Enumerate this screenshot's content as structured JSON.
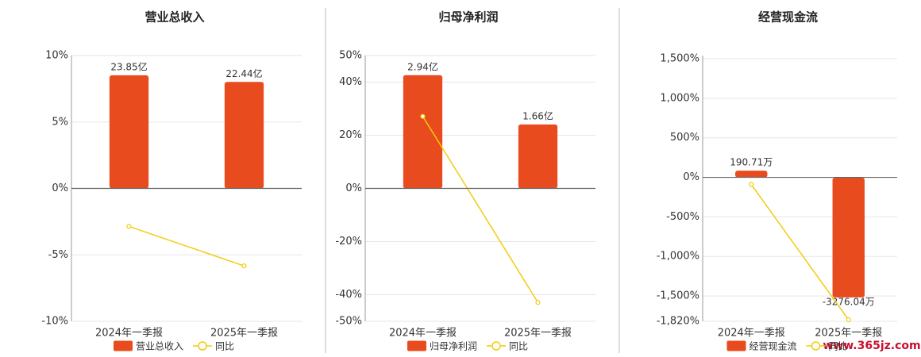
{
  "chart_data": [
    {
      "type": "bar",
      "title": "营业总收入",
      "categories": [
        "2024年一季报",
        "2025年一季报"
      ],
      "series": [
        {
          "name": "营业总收入",
          "type": "bar",
          "axis": "y2",
          "color": "#e84c1e",
          "values": [
            23.85,
            22.44
          ],
          "value_labels": [
            "23.85亿",
            "22.44亿"
          ]
        },
        {
          "name": "同比",
          "type": "line",
          "color": "#f2cc0c",
          "values": [
            -2.86,
            -5.83
          ]
        }
      ],
      "ylim": [
        -10,
        10
      ],
      "yticks": [
        {
          "value": 10,
          "label": "10%"
        },
        {
          "value": 5,
          "label": "5%"
        },
        {
          "value": 0,
          "label": "0%"
        },
        {
          "value": -5,
          "label": "-5%"
        },
        {
          "value": -10,
          "label": "-10%"
        }
      ],
      "y2lim": [
        -28,
        28
      ],
      "grid": true
    },
    {
      "type": "bar",
      "title": "归母净利润",
      "categories": [
        "2024年一季报",
        "2025年一季报"
      ],
      "series": [
        {
          "name": "归母净利润",
          "type": "bar",
          "axis": "y2",
          "color": "#e84c1e",
          "values": [
            2.94,
            1.66
          ],
          "value_labels": [
            "2.94亿",
            "1.66亿"
          ]
        },
        {
          "name": "同比",
          "type": "line",
          "color": "#f2cc0c",
          "values": [
            27.1,
            -42.9
          ]
        }
      ],
      "ylim": [
        -50,
        50
      ],
      "yticks": [
        {
          "value": 50,
          "label": "50%"
        },
        {
          "value": 40,
          "label": "40%"
        },
        {
          "value": 20,
          "label": "20%"
        },
        {
          "value": 0,
          "label": "0%"
        },
        {
          "value": -20,
          "label": "-20%"
        },
        {
          "value": -40,
          "label": "-40%"
        },
        {
          "value": -50,
          "label": "-50%"
        }
      ],
      "y2lim": [
        -3.45,
        3.45
      ],
      "grid": true
    },
    {
      "type": "bar",
      "title": "经营现金流",
      "categories": [
        "2024年一季报",
        "2025年一季报"
      ],
      "series": [
        {
          "name": "经营现金流",
          "type": "bar",
          "axis": "y2",
          "color": "#e84c1e",
          "values": [
            190.71,
            -3276.04
          ],
          "value_labels": [
            "190.71万",
            "-3276.04万"
          ]
        },
        {
          "name": "同比",
          "type": "line",
          "color": "#f2cc0c",
          "values": [
            -90,
            -1800
          ]
        }
      ],
      "ylim": [
        -1820,
        1540
      ],
      "yticks": [
        {
          "value": 1500,
          "label": "1,500%"
        },
        {
          "value": 1000,
          "label": "1,000%"
        },
        {
          "value": 500,
          "label": "500%"
        },
        {
          "value": 0,
          "label": "0%"
        },
        {
          "value": -500,
          "label": "-500%"
        },
        {
          "value": -1000,
          "label": "-1,000%"
        },
        {
          "value": -1500,
          "label": "-1,500%"
        },
        {
          "value": -1820,
          "label": "-1,820%"
        }
      ],
      "y2lim": [
        -3930,
        3340
      ],
      "grid": true
    }
  ],
  "watermark": "www.365jz.com"
}
